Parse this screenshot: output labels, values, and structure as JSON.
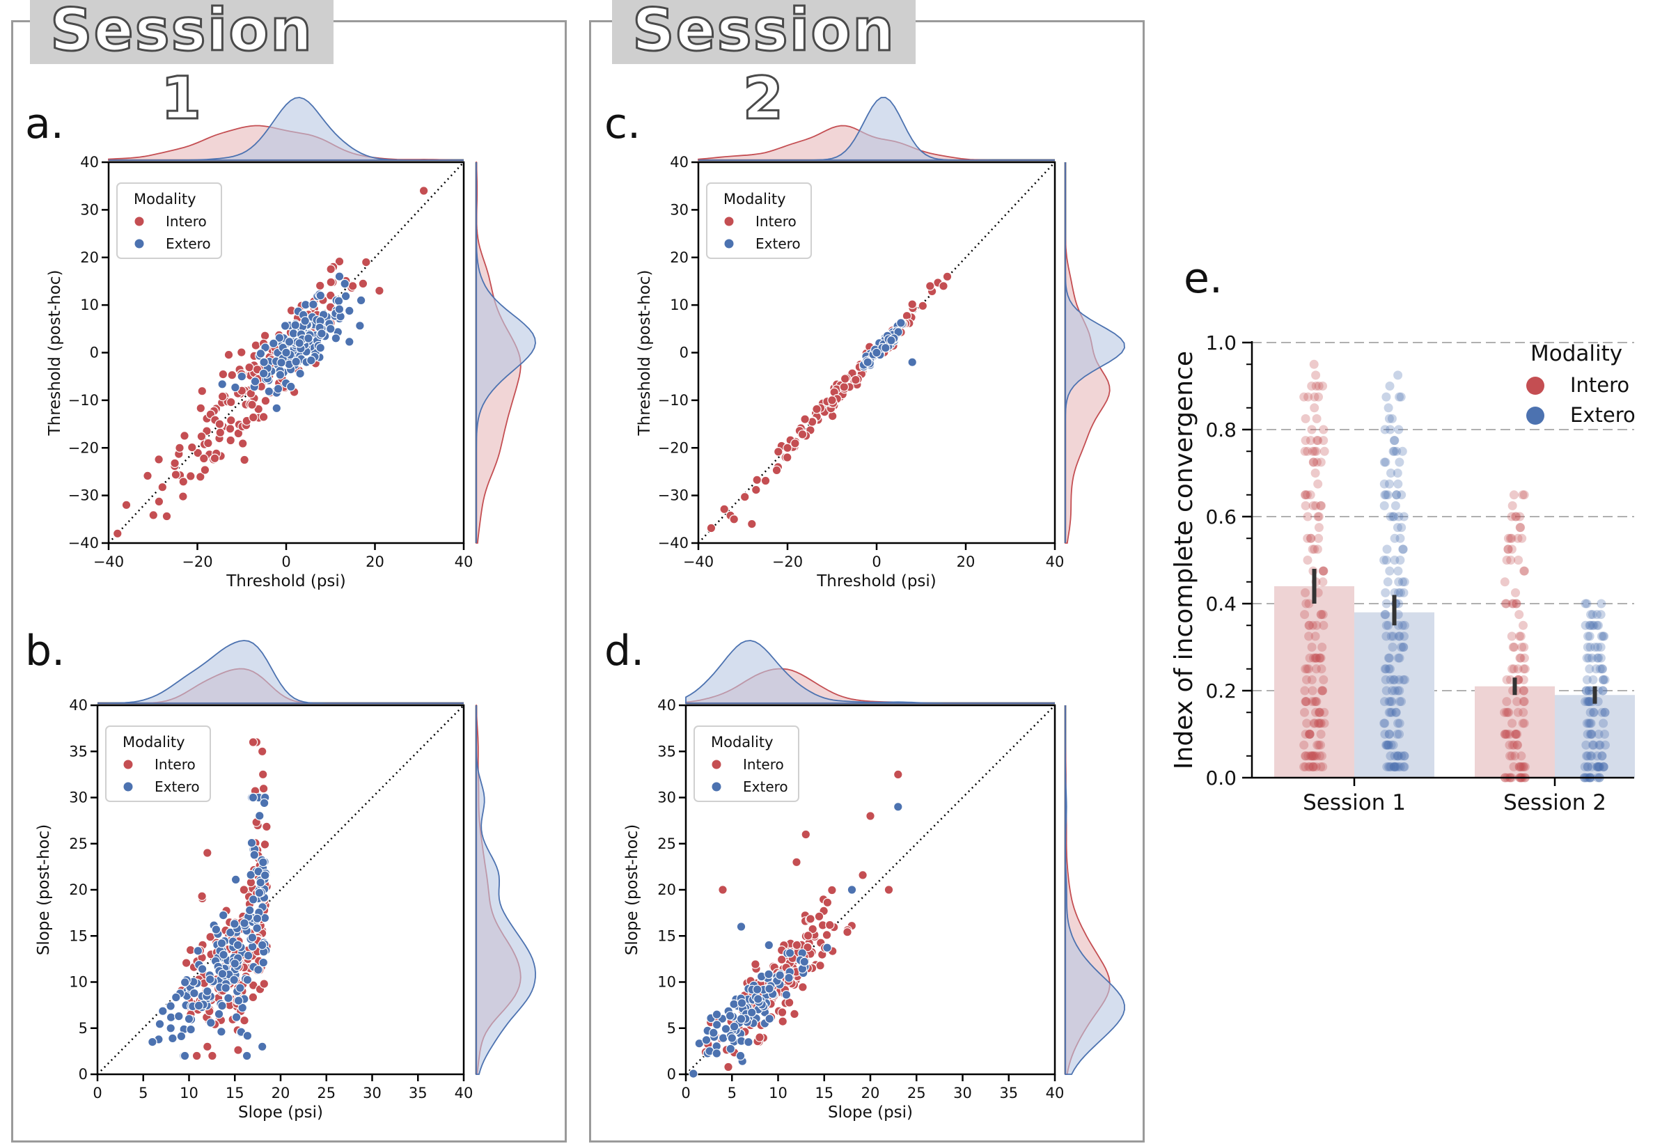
{
  "sessions": [
    {
      "label": "Session 1"
    },
    {
      "label": "Session 2"
    }
  ],
  "colors": {
    "intero": "#c44e52",
    "extero": "#4c72b0",
    "intero_fill": "#e8b9bb",
    "extero_fill": "#b9c8e2"
  },
  "chart_data": [
    {
      "panel": "a.",
      "type": "scatter",
      "xlabel": "Threshold (psi)",
      "ylabel": "Threshold (post-hoc)",
      "xlim": [
        -40,
        40
      ],
      "ylim": [
        -40,
        40
      ],
      "xticks": [
        -40,
        -20,
        0,
        20,
        40
      ],
      "yticks": [
        -40,
        -30,
        -20,
        -10,
        0,
        10,
        20,
        30,
        40
      ],
      "identity_line": true,
      "legend": {
        "title": "Modality",
        "entries": [
          "Intero",
          "Extero"
        ],
        "position": "upper left"
      },
      "series": [
        {
          "name": "Intero",
          "count": 170,
          "x_mean": -6,
          "x_sd": 11,
          "y_slope": 1.0,
          "y_noise": 5,
          "samples": [
            [
              -38,
              -38
            ],
            [
              -36,
              -32
            ],
            [
              31,
              34
            ],
            [
              -24,
              -20
            ],
            [
              -15,
              -15
            ],
            [
              -10,
              -8
            ],
            [
              0,
              2
            ],
            [
              5,
              8
            ],
            [
              10,
              12
            ],
            [
              15,
              14
            ],
            [
              18,
              19
            ],
            [
              21,
              13
            ]
          ]
        },
        {
          "name": "Extero",
          "count": 150,
          "x_mean": 3,
          "x_sd": 5,
          "y_slope": 0.7,
          "y_noise": 3,
          "samples": [
            [
              -10,
              -5
            ],
            [
              -5,
              -2
            ],
            [
              0,
              0
            ],
            [
              3,
              2
            ],
            [
              5,
              3
            ],
            [
              8,
              4
            ],
            [
              10,
              5
            ],
            [
              12,
              16
            ]
          ]
        }
      ],
      "marginals": "kde"
    },
    {
      "panel": "b.",
      "type": "scatter",
      "xlabel": "Slope (psi)",
      "ylabel": "Slope (post-hoc)",
      "xlim": [
        0,
        40
      ],
      "ylim": [
        0,
        40
      ],
      "xticks": [
        0,
        5,
        10,
        15,
        20,
        25,
        30,
        35,
        40
      ],
      "yticks": [
        0,
        5,
        10,
        15,
        20,
        25,
        30,
        35,
        40
      ],
      "identity_line": true,
      "legend": {
        "title": "Modality",
        "entries": [
          "Intero",
          "Extero"
        ],
        "position": "upper left"
      },
      "series": [
        {
          "name": "Intero",
          "count": 190,
          "x_range": [
            8,
            18.5
          ],
          "y_range": [
            2,
            36
          ],
          "samples": [
            [
              17,
              36
            ],
            [
              18,
              35
            ],
            [
              12,
              24
            ],
            [
              18,
              30
            ],
            [
              16,
              20
            ],
            [
              14,
              12
            ],
            [
              10,
              8
            ],
            [
              12,
              3
            ]
          ]
        },
        {
          "name": "Extero",
          "count": 170,
          "x_range": [
            6,
            18.5
          ],
          "y_range": [
            2,
            30
          ],
          "samples": [
            [
              6,
              3.5
            ],
            [
              8,
              5
            ],
            [
              10,
              6
            ],
            [
              12,
              9
            ],
            [
              15,
              12
            ],
            [
              18,
              14
            ],
            [
              17,
              30
            ],
            [
              18,
              3
            ]
          ]
        }
      ],
      "marginals": "kde"
    },
    {
      "panel": "c.",
      "type": "scatter",
      "xlabel": "Threshold (psi)",
      "ylabel": "Threshold (post-hoc)",
      "xlim": [
        -40,
        40
      ],
      "ylim": [
        -40,
        40
      ],
      "xticks": [
        -40,
        -20,
        0,
        20,
        40
      ],
      "yticks": [
        -40,
        -30,
        -20,
        -10,
        0,
        10,
        20,
        30,
        40
      ],
      "identity_line": true,
      "legend": {
        "title": "Modality",
        "entries": [
          "Intero",
          "Extero"
        ],
        "position": "upper left"
      },
      "series": [
        {
          "name": "Intero",
          "count": 120,
          "x_mean": -8,
          "x_sd": 10,
          "y_slope": 1.0,
          "y_noise": 1.2,
          "samples": [
            [
              -32,
              -35
            ],
            [
              -28,
              -36
            ],
            [
              -20,
              -20
            ],
            [
              -10,
              -10
            ],
            [
              0,
              0
            ],
            [
              6,
              6
            ],
            [
              12,
              14
            ],
            [
              15,
              14
            ]
          ]
        },
        {
          "name": "Extero",
          "count": 60,
          "x_mean": 1,
          "x_sd": 2,
          "y_slope": 1.0,
          "y_noise": 0.8,
          "samples": [
            [
              -2,
              -2
            ],
            [
              0,
              0
            ],
            [
              2,
              1
            ],
            [
              8,
              -2
            ]
          ]
        }
      ],
      "marginals": "kde"
    },
    {
      "panel": "d.",
      "type": "scatter",
      "xlabel": "Slope (psi)",
      "ylabel": "Slope (post-hoc)",
      "xlim": [
        0,
        40
      ],
      "ylim": [
        0,
        40
      ],
      "xticks": [
        0,
        5,
        10,
        15,
        20,
        25,
        30,
        35,
        40
      ],
      "yticks": [
        0,
        5,
        10,
        15,
        20,
        25,
        30,
        35,
        40
      ],
      "identity_line": true,
      "legend": {
        "title": "Modality",
        "entries": [
          "Intero",
          "Extero"
        ],
        "position": "upper left"
      },
      "series": [
        {
          "name": "Intero",
          "count": 170,
          "x_mean": 10,
          "x_sd": 3.5,
          "y_slope": 1.0,
          "y_noise": 2,
          "samples": [
            [
              23,
              32.5
            ],
            [
              13,
              26
            ],
            [
              20,
              28
            ],
            [
              12,
              23
            ],
            [
              4,
              20
            ],
            [
              5,
              4
            ],
            [
              8,
              4
            ],
            [
              22,
              20
            ]
          ]
        },
        {
          "name": "Extero",
          "count": 100,
          "x_mean": 7.5,
          "x_sd": 3,
          "y_slope": 1.0,
          "y_noise": 1.5,
          "samples": [
            [
              3,
              4.5
            ],
            [
              6,
              6
            ],
            [
              9,
              14
            ],
            [
              23,
              29
            ],
            [
              6,
              16
            ],
            [
              18,
              20
            ]
          ]
        }
      ],
      "marginals": "kde"
    },
    {
      "panel": "e.",
      "type": "bar",
      "ylabel": "Index of incomplete convergence",
      "categories": [
        "Session 1",
        "Session 2"
      ],
      "ylim": [
        0,
        1
      ],
      "yticks": [
        0.0,
        0.2,
        0.4,
        0.6,
        0.8,
        1.0
      ],
      "grid": "horizontal dashed",
      "legend": {
        "title": "Modality",
        "entries": [
          "Intero",
          "Extero"
        ],
        "position": "upper right"
      },
      "series": [
        {
          "name": "Intero",
          "values": [
            0.44,
            0.21
          ],
          "ci": [
            [
              0.4,
              0.48
            ],
            [
              0.19,
              0.23
            ]
          ],
          "strip": [
            {
              "min": 0.03,
              "max": 0.95
            },
            {
              "min": 0.0,
              "max": 0.67
            }
          ]
        },
        {
          "name": "Extero",
          "values": [
            0.38,
            0.19
          ],
          "ci": [
            [
              0.35,
              0.42
            ],
            [
              0.17,
              0.21
            ]
          ],
          "strip": [
            {
              "min": 0.03,
              "max": 0.93
            },
            {
              "min": 0.0,
              "max": 0.4
            }
          ]
        }
      ]
    }
  ]
}
